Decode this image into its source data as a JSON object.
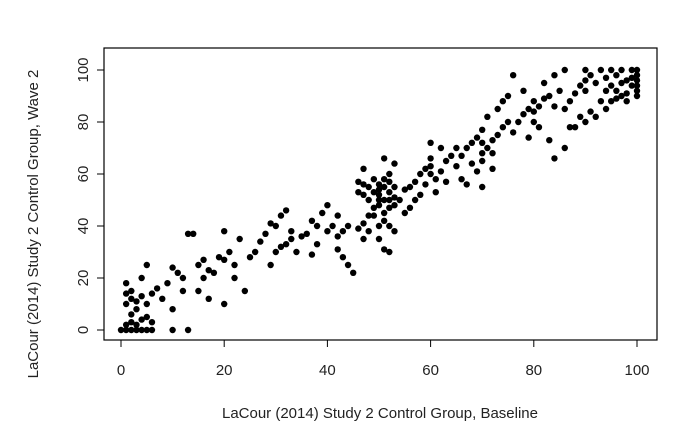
{
  "chart_data": {
    "type": "scatter",
    "xlabel": "LaCour (2014) Study 2 Control Group, Baseline",
    "ylabel": "LaCour (2014) Study 2 Control Group, Wave 2",
    "xlim": [
      0,
      100
    ],
    "ylim": [
      0,
      100
    ],
    "xticks": [
      0,
      20,
      40,
      60,
      80,
      100
    ],
    "yticks": [
      0,
      20,
      40,
      60,
      80,
      100
    ],
    "grid": false,
    "point_color": "#000000",
    "series": [
      {
        "points": [
          [
            0,
            0
          ],
          [
            1,
            0
          ],
          [
            2,
            0
          ],
          [
            3,
            0
          ],
          [
            4,
            0
          ],
          [
            5,
            0
          ],
          [
            6,
            0
          ],
          [
            10,
            0
          ],
          [
            13,
            0
          ],
          [
            1,
            2
          ],
          [
            2,
            3
          ],
          [
            3,
            2
          ],
          [
            4,
            4
          ],
          [
            5,
            5
          ],
          [
            6,
            3
          ],
          [
            2,
            6
          ],
          [
            3,
            8
          ],
          [
            1,
            10
          ],
          [
            2,
            12
          ],
          [
            3,
            11
          ],
          [
            4,
            13
          ],
          [
            1,
            14
          ],
          [
            2,
            15
          ],
          [
            1,
            18
          ],
          [
            5,
            10
          ],
          [
            6,
            14
          ],
          [
            7,
            16
          ],
          [
            4,
            20
          ],
          [
            5,
            25
          ],
          [
            8,
            12
          ],
          [
            10,
            8
          ],
          [
            9,
            18
          ],
          [
            11,
            22
          ],
          [
            10,
            24
          ],
          [
            12,
            20
          ],
          [
            13,
            37
          ],
          [
            14,
            37
          ],
          [
            12,
            15
          ],
          [
            15,
            15
          ],
          [
            16,
            20
          ],
          [
            17,
            23
          ],
          [
            15,
            25
          ],
          [
            16,
            27
          ],
          [
            18,
            22
          ],
          [
            19,
            28
          ],
          [
            17,
            12
          ],
          [
            20,
            10
          ],
          [
            20,
            27
          ],
          [
            21,
            30
          ],
          [
            22,
            20
          ],
          [
            22,
            25
          ],
          [
            23,
            35
          ],
          [
            24,
            15
          ],
          [
            25,
            28
          ],
          [
            20,
            38
          ],
          [
            26,
            30
          ],
          [
            27,
            34
          ],
          [
            28,
            37
          ],
          [
            30,
            30
          ],
          [
            31,
            32
          ],
          [
            32,
            33
          ],
          [
            33,
            35
          ],
          [
            30,
            40
          ],
          [
            31,
            44
          ],
          [
            32,
            46
          ],
          [
            33,
            38
          ],
          [
            34,
            30
          ],
          [
            35,
            36
          ],
          [
            29,
            25
          ],
          [
            29,
            41
          ],
          [
            36,
            37
          ],
          [
            37,
            42
          ],
          [
            38,
            40
          ],
          [
            39,
            45
          ],
          [
            40,
            38
          ],
          [
            41,
            40
          ],
          [
            42,
            44
          ],
          [
            40,
            48
          ],
          [
            38,
            33
          ],
          [
            37,
            29
          ],
          [
            42,
            36
          ],
          [
            43,
            38
          ],
          [
            44,
            40
          ],
          [
            42,
            31
          ],
          [
            43,
            28
          ],
          [
            44,
            25
          ],
          [
            45,
            22
          ],
          [
            46,
            39
          ],
          [
            47,
            41
          ],
          [
            48,
            44
          ],
          [
            49,
            47
          ],
          [
            50,
            48
          ],
          [
            50,
            50
          ],
          [
            50,
            52
          ],
          [
            50,
            54
          ],
          [
            50,
            56
          ],
          [
            51,
            45
          ],
          [
            51,
            50
          ],
          [
            51,
            55
          ],
          [
            51,
            58
          ],
          [
            52,
            47
          ],
          [
            52,
            50
          ],
          [
            52,
            53
          ],
          [
            52,
            57
          ],
          [
            52,
            60
          ],
          [
            53,
            48
          ],
          [
            53,
            51
          ],
          [
            53,
            55
          ],
          [
            49,
            53
          ],
          [
            49,
            58
          ],
          [
            48,
            50
          ],
          [
            48,
            55
          ],
          [
            47,
            52
          ],
          [
            47,
            56
          ],
          [
            46,
            53
          ],
          [
            50,
            40
          ],
          [
            51,
            42
          ],
          [
            52,
            40
          ],
          [
            53,
            38
          ],
          [
            50,
            35
          ],
          [
            51,
            31
          ],
          [
            52,
            30
          ],
          [
            53,
            64
          ],
          [
            51,
            66
          ],
          [
            47,
            62
          ],
          [
            46,
            57
          ],
          [
            49,
            44
          ],
          [
            48,
            38
          ],
          [
            47,
            35
          ],
          [
            54,
            50
          ],
          [
            55,
            54
          ],
          [
            56,
            55
          ],
          [
            57,
            57
          ],
          [
            58,
            60
          ],
          [
            59,
            62
          ],
          [
            60,
            60
          ],
          [
            60,
            63
          ],
          [
            60,
            66
          ],
          [
            61,
            58
          ],
          [
            62,
            61
          ],
          [
            63,
            65
          ],
          [
            64,
            67
          ],
          [
            65,
            70
          ],
          [
            58,
            52
          ],
          [
            57,
            50
          ],
          [
            59,
            56
          ],
          [
            61,
            53
          ],
          [
            60,
            72
          ],
          [
            62,
            70
          ],
          [
            56,
            47
          ],
          [
            55,
            45
          ],
          [
            63,
            57
          ],
          [
            65,
            63
          ],
          [
            66,
            67
          ],
          [
            67,
            70
          ],
          [
            68,
            72
          ],
          [
            69,
            74
          ],
          [
            70,
            68
          ],
          [
            70,
            72
          ],
          [
            70,
            77
          ],
          [
            71,
            70
          ],
          [
            72,
            73
          ],
          [
            73,
            75
          ],
          [
            74,
            78
          ],
          [
            75,
            80
          ],
          [
            68,
            64
          ],
          [
            69,
            61
          ],
          [
            70,
            65
          ],
          [
            72,
            62
          ],
          [
            66,
            58
          ],
          [
            67,
            56
          ],
          [
            71,
            82
          ],
          [
            73,
            85
          ],
          [
            74,
            88
          ],
          [
            75,
            90
          ],
          [
            76,
            98
          ],
          [
            72,
            68
          ],
          [
            70,
            55
          ],
          [
            76,
            76
          ],
          [
            77,
            80
          ],
          [
            78,
            83
          ],
          [
            79,
            85
          ],
          [
            80,
            80
          ],
          [
            80,
            84
          ],
          [
            80,
            88
          ],
          [
            81,
            86
          ],
          [
            82,
            89
          ],
          [
            83,
            90
          ],
          [
            84,
            86
          ],
          [
            85,
            92
          ],
          [
            79,
            74
          ],
          [
            81,
            78
          ],
          [
            83,
            73
          ],
          [
            84,
            66
          ],
          [
            86,
            70
          ],
          [
            87,
            78
          ],
          [
            82,
            95
          ],
          [
            84,
            98
          ],
          [
            86,
            100
          ],
          [
            78,
            92
          ],
          [
            86,
            85
          ],
          [
            87,
            88
          ],
          [
            88,
            91
          ],
          [
            89,
            94
          ],
          [
            90,
            96
          ],
          [
            90,
            92
          ],
          [
            90,
            100
          ],
          [
            91,
            98
          ],
          [
            92,
            95
          ],
          [
            93,
            100
          ],
          [
            94,
            97
          ],
          [
            95,
            100
          ],
          [
            96,
            98
          ],
          [
            97,
            100
          ],
          [
            98,
            96
          ],
          [
            99,
            100
          ],
          [
            100,
            100
          ],
          [
            100,
            98
          ],
          [
            100,
            96
          ],
          [
            100,
            94
          ],
          [
            100,
            92
          ],
          [
            95,
            94
          ],
          [
            96,
            92
          ],
          [
            97,
            95
          ],
          [
            98,
            91
          ],
          [
            99,
            97
          ],
          [
            93,
            88
          ],
          [
            94,
            85
          ],
          [
            92,
            82
          ],
          [
            90,
            80
          ],
          [
            91,
            84
          ],
          [
            89,
            82
          ],
          [
            88,
            78
          ],
          [
            96,
            89
          ],
          [
            98,
            88
          ],
          [
            97,
            90
          ],
          [
            99,
            94
          ],
          [
            100,
            90
          ],
          [
            95,
            88
          ],
          [
            94,
            92
          ]
        ]
      }
    ]
  }
}
